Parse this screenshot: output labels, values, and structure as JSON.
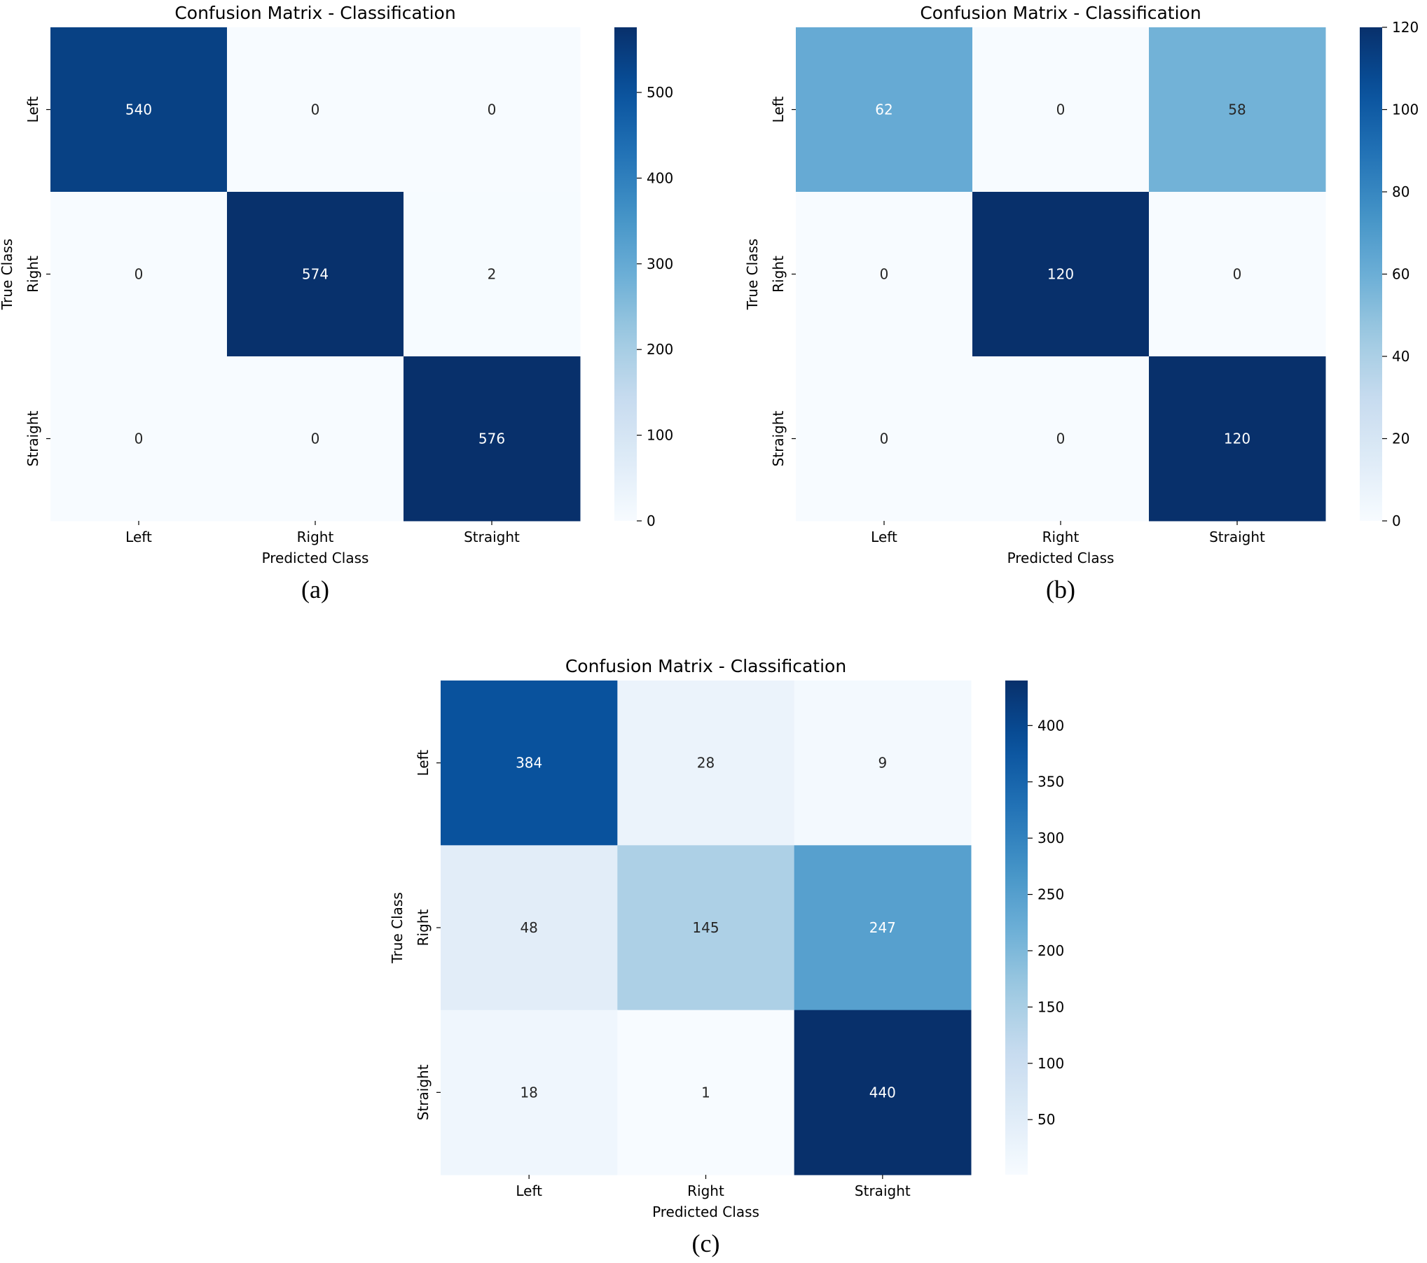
{
  "chart_data": [
    {
      "type": "heatmap",
      "title": "Confusion Matrix - Classification",
      "xlabel": "Predicted Class",
      "ylabel": "True Class",
      "x_categories": [
        "Left",
        "Right",
        "Straight"
      ],
      "y_categories": [
        "Left",
        "Right",
        "Straight"
      ],
      "values": [
        [
          540,
          0,
          0
        ],
        [
          0,
          574,
          2
        ],
        [
          0,
          0,
          576
        ]
      ],
      "colorbar": {
        "min": 0,
        "max": 576,
        "ticks": [
          0,
          100,
          200,
          300,
          400,
          500
        ]
      },
      "colormap": "Blues",
      "caption": "(a)"
    },
    {
      "type": "heatmap",
      "title": "Confusion Matrix - Classification",
      "xlabel": "Predicted Class",
      "ylabel": "True Class",
      "x_categories": [
        "Left",
        "Right",
        "Straight"
      ],
      "y_categories": [
        "Left",
        "Right",
        "Straight"
      ],
      "values": [
        [
          62,
          0,
          58
        ],
        [
          0,
          120,
          0
        ],
        [
          0,
          0,
          120
        ]
      ],
      "colorbar": {
        "min": 0,
        "max": 120,
        "ticks": [
          0,
          20,
          40,
          60,
          80,
          100,
          120
        ]
      },
      "colormap": "Blues",
      "caption": "(b)"
    },
    {
      "type": "heatmap",
      "title": "Confusion Matrix - Classification",
      "xlabel": "Predicted Class",
      "ylabel": "True Class",
      "x_categories": [
        "Left",
        "Right",
        "Straight"
      ],
      "y_categories": [
        "Left",
        "Right",
        "Straight"
      ],
      "values": [
        [
          384,
          28,
          9
        ],
        [
          48,
          145,
          247
        ],
        [
          18,
          1,
          440
        ]
      ],
      "colorbar": {
        "min": 1,
        "max": 440,
        "ticks": [
          50,
          100,
          150,
          200,
          250,
          300,
          350,
          400
        ]
      },
      "colormap": "Blues",
      "caption": "(c)"
    }
  ]
}
